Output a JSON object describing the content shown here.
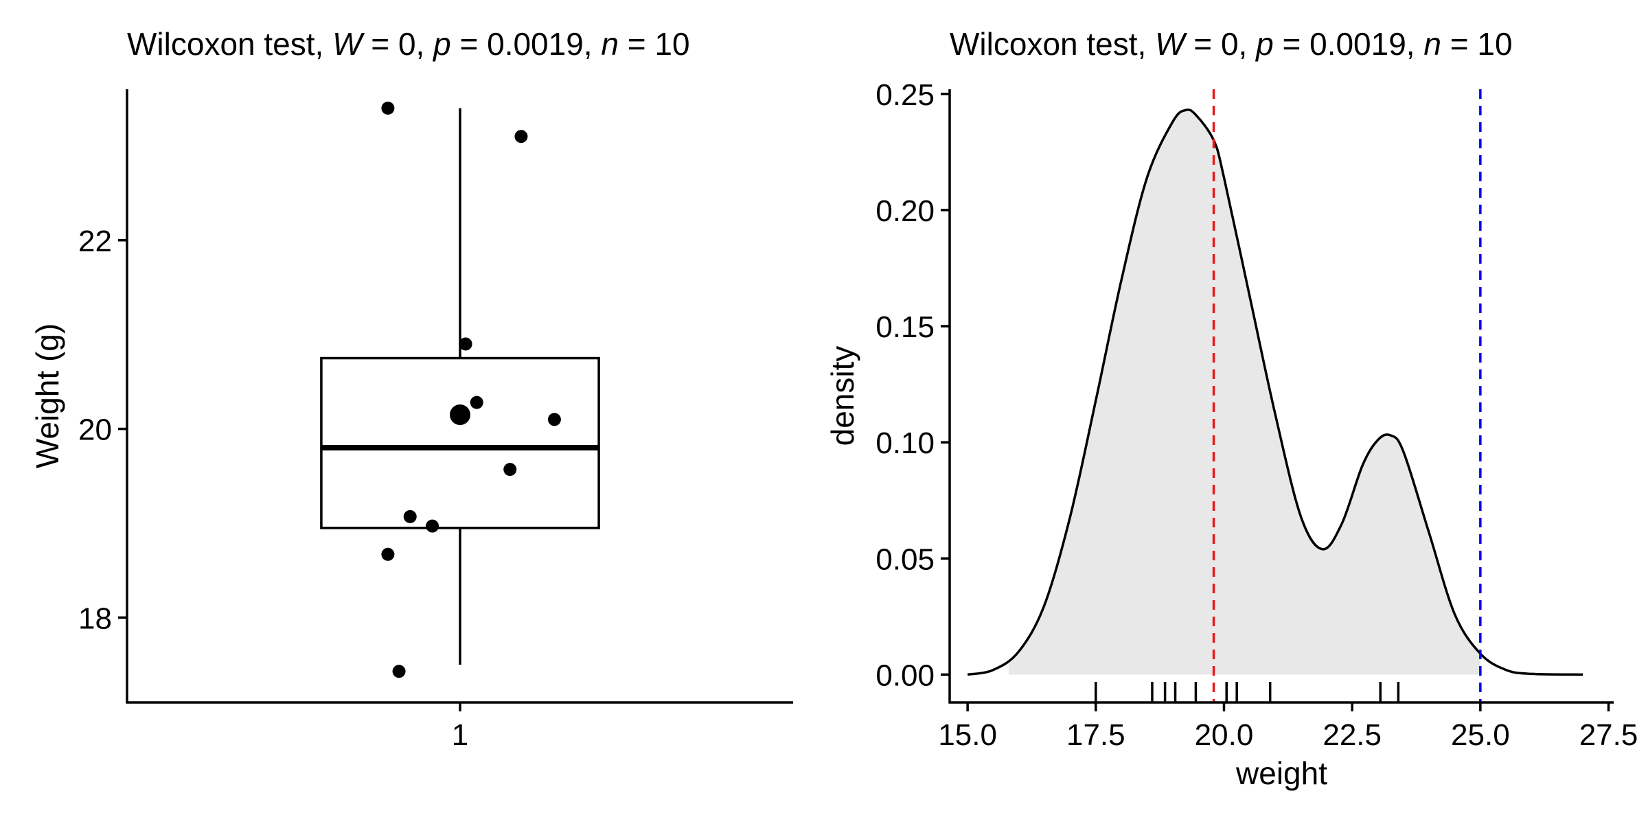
{
  "chart_data": [
    {
      "type": "boxplot",
      "title_parts": [
        {
          "text": "Wilcoxon test, ",
          "italic": false
        },
        {
          "text": "W",
          "italic": true
        },
        {
          "text": " = 0, ",
          "italic": false
        },
        {
          "text": "p",
          "italic": true
        },
        {
          "text": " = 0.0019, ",
          "italic": false
        },
        {
          "text": "n",
          "italic": true
        },
        {
          "text": " = 10",
          "italic": false
        }
      ],
      "xlabel": "",
      "ylabel": "Weight (g)",
      "x_categories": [
        "1"
      ],
      "x_range": [
        0.4,
        1.6
      ],
      "ylim": [
        17.1,
        23.6
      ],
      "y_ticks": [
        18,
        20,
        22
      ],
      "box": {
        "q1": 18.95,
        "median": 19.8,
        "q3": 20.75,
        "whisker_low": 17.5,
        "whisker_high": 23.4
      },
      "box_half_width": 0.25,
      "mean_point": {
        "x": 1.0,
        "y": 20.15
      },
      "jitter_points": [
        {
          "x": 0.87,
          "y": 23.4
        },
        {
          "x": 1.11,
          "y": 23.1
        },
        {
          "x": 1.01,
          "y": 20.9
        },
        {
          "x": 1.03,
          "y": 20.28
        },
        {
          "x": 1.17,
          "y": 20.1
        },
        {
          "x": 1.09,
          "y": 19.57
        },
        {
          "x": 0.91,
          "y": 19.07
        },
        {
          "x": 0.95,
          "y": 18.97
        },
        {
          "x": 0.87,
          "y": 18.67
        },
        {
          "x": 0.89,
          "y": 17.43
        }
      ],
      "grid": false
    },
    {
      "type": "area",
      "title_parts": [
        {
          "text": "Wilcoxon test, ",
          "italic": false
        },
        {
          "text": "W",
          "italic": true
        },
        {
          "text": " = 0, ",
          "italic": false
        },
        {
          "text": "p",
          "italic": true
        },
        {
          "text": " = 0.0019, ",
          "italic": false
        },
        {
          "text": "n",
          "italic": true
        },
        {
          "text": " = 10",
          "italic": false
        }
      ],
      "xlabel": "weight",
      "ylabel": "density",
      "xlim": [
        14.65,
        27.6
      ],
      "ylim": [
        -0.012,
        0.252
      ],
      "x_ticks": [
        "15.0",
        "17.5",
        "20.0",
        "22.5",
        "25.0",
        "27.5"
      ],
      "y_ticks": [
        "0.00",
        "0.05",
        "0.10",
        "0.15",
        "0.20",
        "0.25"
      ],
      "density_x": [
        15.0,
        15.5,
        16.0,
        16.5,
        17.0,
        17.5,
        18.0,
        18.5,
        19.0,
        19.25,
        19.45,
        19.8,
        20.0,
        20.5,
        21.0,
        21.5,
        21.92,
        22.3,
        22.7,
        23.0,
        23.25,
        23.5,
        24.0,
        24.5,
        25.0,
        25.5,
        26.0,
        27.0
      ],
      "density_y": [
        0.0,
        0.002,
        0.01,
        0.03,
        0.068,
        0.118,
        0.17,
        0.214,
        0.238,
        0.243,
        0.241,
        0.23,
        0.214,
        0.163,
        0.112,
        0.068,
        0.054,
        0.065,
        0.09,
        0.101,
        0.103,
        0.096,
        0.061,
        0.026,
        0.009,
        0.002,
        0.0003,
        0.0
      ],
      "fill_color": "#e8e8e8",
      "fill_range": [
        15.8,
        25.0
      ],
      "vlines": [
        {
          "x": 19.8,
          "color": "#e41a1c",
          "style": "dashed"
        },
        {
          "x": 25.0,
          "color": "#0000ee",
          "style": "dashed"
        }
      ],
      "rug": [
        17.5,
        18.6,
        18.85,
        19.05,
        19.45,
        20.05,
        20.25,
        20.9,
        23.05,
        23.4
      ],
      "grid": false
    }
  ]
}
